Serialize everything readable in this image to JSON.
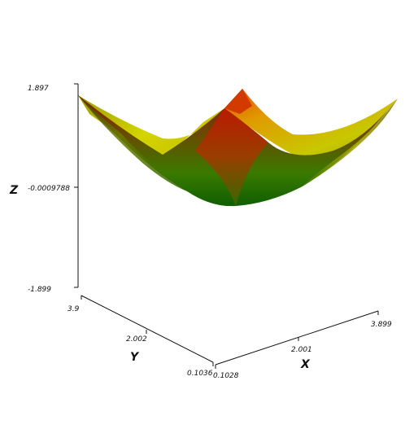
{
  "chart_data": {
    "type": "surface",
    "title": "",
    "axes": {
      "x": {
        "label": "X",
        "ticks": [
          "0.1028",
          "2.001",
          "3.899"
        ],
        "range": [
          0.1028,
          3.899
        ]
      },
      "y": {
        "label": "Y",
        "ticks": [
          "0.1036",
          "2.002",
          "3.9"
        ],
        "range": [
          0.1036,
          3.9
        ]
      },
      "z": {
        "label": "Z",
        "ticks": [
          "1.897",
          "-0.0009788",
          "-1.899"
        ],
        "range": [
          -1.899,
          1.897
        ]
      }
    },
    "surface": {
      "description_shape": "paraboloid",
      "min_value": -0.0009788,
      "max_value": 1.897
    },
    "colormap": [
      "#0f5e00",
      "#6ba000",
      "#d4d400",
      "#e08a00",
      "#c01800"
    ]
  }
}
